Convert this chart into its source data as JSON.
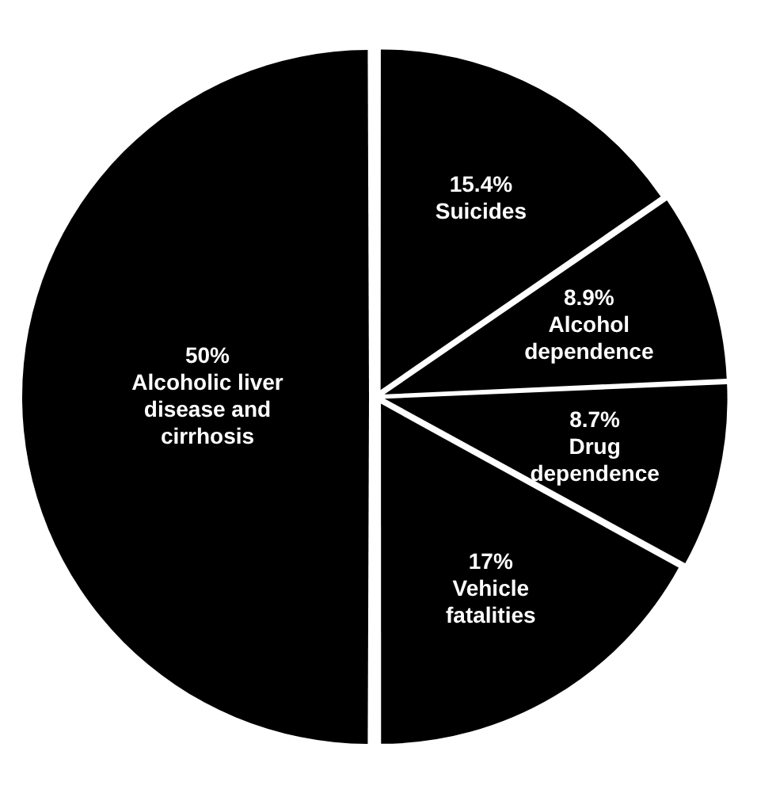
{
  "chart_data": {
    "type": "pie",
    "categories": [
      "Suicides",
      "Alcohol dependence",
      "Drug dependence",
      "Vehicle fatalities",
      "Alcoholic liver disease and cirrhosis"
    ],
    "values": [
      15.4,
      8.9,
      8.7,
      17,
      50
    ],
    "value_labels": [
      "15.4%",
      "8.9%",
      "8.7%",
      "17%",
      "50%"
    ],
    "colors": [
      "#000000",
      "#000000",
      "#000000",
      "#000000",
      "#000000"
    ],
    "legend": false
  }
}
